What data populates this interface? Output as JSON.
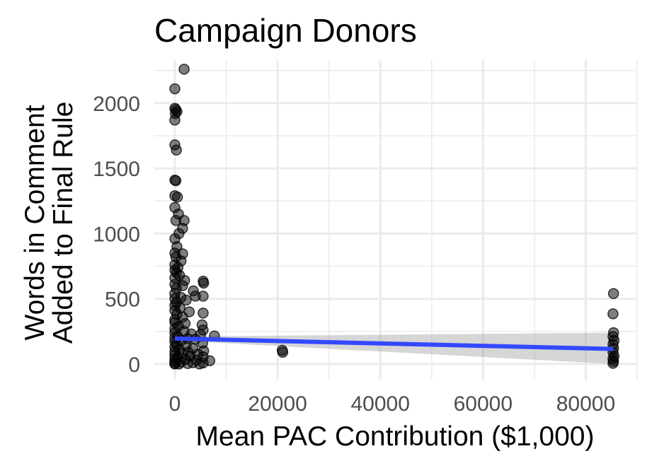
{
  "chart_data": {
    "type": "scatter",
    "title": "Campaign Donors",
    "xlabel": "Mean PAC Contribution ($1,000)",
    "ylabel": [
      "Words in Comment",
      "Added to Final Rule"
    ],
    "xlim": [
      -4000,
      90000
    ],
    "ylim": [
      -120,
      2330
    ],
    "x_ticks": [
      0,
      20000,
      40000,
      60000,
      80000
    ],
    "y_ticks": [
      0,
      500,
      1000,
      1500,
      2000
    ],
    "grid": true,
    "colors": {
      "points": "#000000",
      "trend_line": "#3348ff",
      "confidence_band": "#999999",
      "grid": "#ebebeb"
    },
    "points": [
      {
        "x": 1800,
        "y": 2260
      },
      {
        "x": 0,
        "y": 2110
      },
      {
        "x": 0,
        "y": 1960
      },
      {
        "x": 200,
        "y": 1950
      },
      {
        "x": 400,
        "y": 1935
      },
      {
        "x": 100,
        "y": 1920
      },
      {
        "x": 0,
        "y": 1870
      },
      {
        "x": 0,
        "y": 1680
      },
      {
        "x": 300,
        "y": 1640
      },
      {
        "x": 0,
        "y": 1410
      },
      {
        "x": 200,
        "y": 1405
      },
      {
        "x": 0,
        "y": 1290
      },
      {
        "x": 500,
        "y": 1280
      },
      {
        "x": 0,
        "y": 1200
      },
      {
        "x": 700,
        "y": 1150
      },
      {
        "x": 200,
        "y": 1100
      },
      {
        "x": 1800,
        "y": 1100
      },
      {
        "x": 1500,
        "y": 1040
      },
      {
        "x": 800,
        "y": 1000
      },
      {
        "x": 0,
        "y": 960
      },
      {
        "x": 400,
        "y": 900
      },
      {
        "x": 0,
        "y": 850
      },
      {
        "x": 1500,
        "y": 845
      },
      {
        "x": 200,
        "y": 820
      },
      {
        "x": 1200,
        "y": 790
      },
      {
        "x": 0,
        "y": 760
      },
      {
        "x": 600,
        "y": 740
      },
      {
        "x": 0,
        "y": 720
      },
      {
        "x": 300,
        "y": 700
      },
      {
        "x": 900,
        "y": 680
      },
      {
        "x": 0,
        "y": 660
      },
      {
        "x": 1900,
        "y": 640
      },
      {
        "x": 5500,
        "y": 635
      },
      {
        "x": 5600,
        "y": 620
      },
      {
        "x": 0,
        "y": 610
      },
      {
        "x": 1500,
        "y": 600
      },
      {
        "x": 300,
        "y": 580
      },
      {
        "x": 3600,
        "y": 560
      },
      {
        "x": 0,
        "y": 540
      },
      {
        "x": 4000,
        "y": 520
      },
      {
        "x": 5500,
        "y": 520
      },
      {
        "x": 1200,
        "y": 510
      },
      {
        "x": 0,
        "y": 500
      },
      {
        "x": 2200,
        "y": 490
      },
      {
        "x": 300,
        "y": 470
      },
      {
        "x": 0,
        "y": 450
      },
      {
        "x": 1000,
        "y": 430
      },
      {
        "x": 0,
        "y": 410
      },
      {
        "x": 2800,
        "y": 400
      },
      {
        "x": 5500,
        "y": 390
      },
      {
        "x": 400,
        "y": 380
      },
      {
        "x": 1500,
        "y": 360
      },
      {
        "x": 0,
        "y": 340
      },
      {
        "x": 0,
        "y": 320
      },
      {
        "x": 2000,
        "y": 310
      },
      {
        "x": 5300,
        "y": 300
      },
      {
        "x": 700,
        "y": 290
      },
      {
        "x": 0,
        "y": 270
      },
      {
        "x": 5500,
        "y": 260
      },
      {
        "x": 1800,
        "y": 250
      },
      {
        "x": 0,
        "y": 240
      },
      {
        "x": 3200,
        "y": 230
      },
      {
        "x": 5000,
        "y": 225
      },
      {
        "x": 7700,
        "y": 215
      },
      {
        "x": 600,
        "y": 210
      },
      {
        "x": 0,
        "y": 200
      },
      {
        "x": 2500,
        "y": 195
      },
      {
        "x": 4000,
        "y": 190
      },
      {
        "x": 1200,
        "y": 180
      },
      {
        "x": 0,
        "y": 170
      },
      {
        "x": 5400,
        "y": 160
      },
      {
        "x": 300,
        "y": 150
      },
      {
        "x": 2200,
        "y": 140
      },
      {
        "x": 0,
        "y": 130
      },
      {
        "x": 3500,
        "y": 120
      },
      {
        "x": 900,
        "y": 110
      },
      {
        "x": 5600,
        "y": 100
      },
      {
        "x": 0,
        "y": 95
      },
      {
        "x": 2600,
        "y": 90
      },
      {
        "x": 1500,
        "y": 80
      },
      {
        "x": 4500,
        "y": 75
      },
      {
        "x": 0,
        "y": 70
      },
      {
        "x": 3000,
        "y": 60
      },
      {
        "x": 5500,
        "y": 55
      },
      {
        "x": 600,
        "y": 50
      },
      {
        "x": 0,
        "y": 40
      },
      {
        "x": 2000,
        "y": 35
      },
      {
        "x": 4200,
        "y": 30
      },
      {
        "x": 6800,
        "y": 25
      },
      {
        "x": 0,
        "y": 20
      },
      {
        "x": 1200,
        "y": 15
      },
      {
        "x": 3500,
        "y": 10
      },
      {
        "x": 5500,
        "y": 8
      },
      {
        "x": 0,
        "y": 5
      },
      {
        "x": 2500,
        "y": 3
      },
      {
        "x": 800,
        "y": 0
      },
      {
        "x": 4800,
        "y": 0
      },
      {
        "x": 0,
        "y": 0
      },
      {
        "x": 20900,
        "y": 105
      },
      {
        "x": 21000,
        "y": 90
      },
      {
        "x": 85400,
        "y": 540
      },
      {
        "x": 85300,
        "y": 385
      },
      {
        "x": 85400,
        "y": 240
      },
      {
        "x": 85300,
        "y": 210
      },
      {
        "x": 85500,
        "y": 180
      },
      {
        "x": 85300,
        "y": 150
      },
      {
        "x": 85400,
        "y": 120
      },
      {
        "x": 85300,
        "y": 90
      },
      {
        "x": 85500,
        "y": 60
      },
      {
        "x": 85300,
        "y": 40
      },
      {
        "x": 85400,
        "y": 20
      },
      {
        "x": 85300,
        "y": 5
      }
    ],
    "trend_line": {
      "x": [
        0,
        85400
      ],
      "y": [
        195,
        115
      ],
      "ci_lower": [
        180,
        0
      ],
      "ci_upper": [
        210,
        240
      ]
    }
  }
}
